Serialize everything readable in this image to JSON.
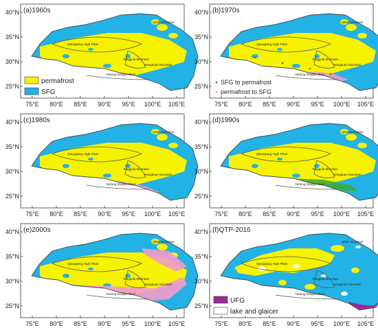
{
  "colors": {
    "permafrost": "#f6f200",
    "sfg": "#22b2e6",
    "sfg_to_permafrost": "#b36a00",
    "permafrost_to_sfg": "#f29acb",
    "ufg": "#9b2a98",
    "lake": "#ffffff",
    "green": "#3aa83a",
    "outline": "#555555"
  },
  "axes": {
    "xticks": [
      "75°E",
      "80°E",
      "85°E",
      "90°E",
      "95°E",
      "100°E",
      "105°E"
    ],
    "yticks": [
      "40°N",
      "35°N",
      "30°N",
      "25°N"
    ]
  },
  "labels": {
    "qilian": "Qilian Mountain",
    "qiangtang": "Qiangtang High Plain",
    "tanggula": "Tanggula Mountain",
    "hengduan": "Hengduan Mountain",
    "yarlung": "Yarlung Zangbo River"
  },
  "panels": [
    {
      "title": "(a)1960s"
    },
    {
      "title": "(b)1970s"
    },
    {
      "title": "(c)1980s"
    },
    {
      "title": "(d)1990s"
    },
    {
      "title": "(e)2000s"
    },
    {
      "title": "(f)QTP-2016"
    }
  ],
  "legends": {
    "a": [
      "permafrost",
      "SFG"
    ],
    "b": [
      "SFG to permafrost",
      "permafrost to SFG"
    ],
    "f": [
      "UFG",
      "lake and glaicer"
    ]
  }
}
